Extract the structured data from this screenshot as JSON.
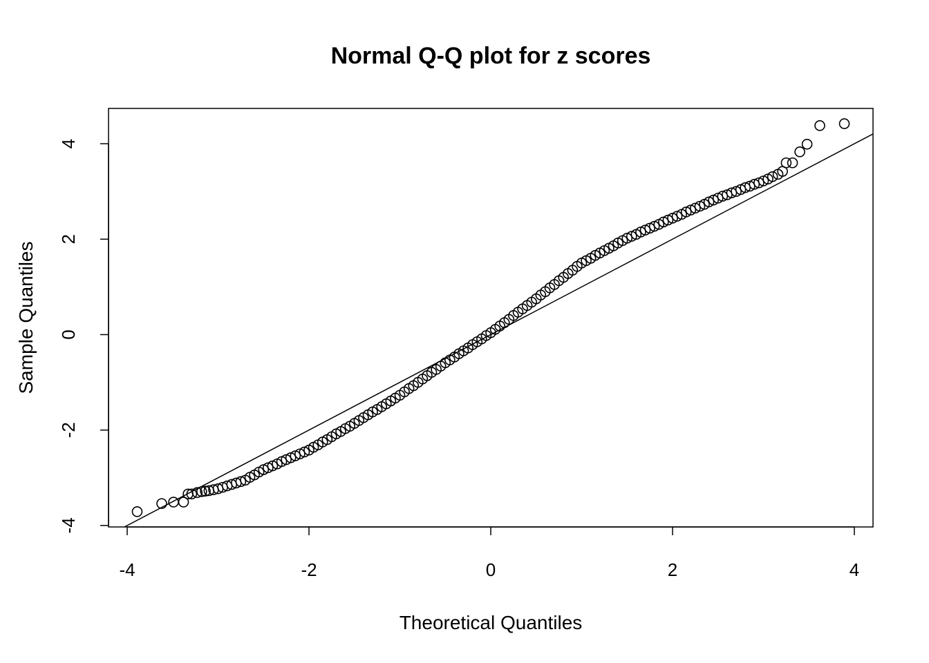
{
  "chart_data": {
    "type": "scatter",
    "title": "Normal Q-Q plot for z scores",
    "xlabel": "Theoretical Quantiles",
    "ylabel": "Sample Quantiles",
    "xlim": [
      -4.2,
      4.2
    ],
    "ylim": [
      -4.05,
      4.7
    ],
    "xticks": [
      -4,
      -2,
      0,
      2,
      4
    ],
    "yticks": [
      -4,
      -2,
      0,
      2,
      4
    ],
    "xtick_labels": [
      "-4",
      "-2",
      "0",
      "2",
      "4"
    ],
    "ytick_labels": [
      "-4",
      "-2",
      "0",
      "2",
      "4"
    ],
    "grid": false,
    "marker": "open-circle",
    "reference_line": {
      "intercept": 0,
      "slope": 1
    },
    "points": {
      "x": [
        -3.89,
        -3.62,
        -3.49,
        -3.38,
        -3.33,
        -3.29,
        -3.23,
        -3.18,
        -3.14,
        -3.1,
        -3.05,
        -3.0,
        -2.95,
        -2.9,
        -2.85,
        -2.8,
        -2.75,
        -2.7,
        -2.65,
        -2.6,
        -2.55,
        -2.5,
        -2.45,
        -2.4,
        -2.35,
        -2.3,
        -2.25,
        -2.2,
        -2.15,
        -2.1,
        -2.05,
        -2.0,
        -1.95,
        -1.9,
        -1.85,
        -1.8,
        -1.75,
        -1.7,
        -1.65,
        -1.6,
        -1.55,
        -1.5,
        -1.45,
        -1.4,
        -1.35,
        -1.3,
        -1.25,
        -1.2,
        -1.15,
        -1.1,
        -1.05,
        -1.0,
        -0.95,
        -0.9,
        -0.85,
        -0.8,
        -0.75,
        -0.7,
        -0.65,
        -0.6,
        -0.55,
        -0.5,
        -0.45,
        -0.4,
        -0.35,
        -0.3,
        -0.25,
        -0.2,
        -0.15,
        -0.1,
        -0.05,
        0.0,
        0.05,
        0.1,
        0.15,
        0.2,
        0.25,
        0.3,
        0.35,
        0.4,
        0.45,
        0.5,
        0.55,
        0.6,
        0.65,
        0.7,
        0.75,
        0.8,
        0.85,
        0.9,
        0.95,
        1.0,
        1.05,
        1.1,
        1.15,
        1.2,
        1.25,
        1.3,
        1.35,
        1.4,
        1.45,
        1.5,
        1.55,
        1.6,
        1.65,
        1.7,
        1.75,
        1.8,
        1.85,
        1.9,
        1.95,
        2.0,
        2.05,
        2.1,
        2.15,
        2.2,
        2.25,
        2.3,
        2.35,
        2.4,
        2.45,
        2.5,
        2.55,
        2.6,
        2.65,
        2.7,
        2.75,
        2.8,
        2.85,
        2.9,
        2.95,
        3.0,
        3.05,
        3.1,
        3.16,
        3.21,
        3.25,
        3.32,
        3.4,
        3.48,
        3.62,
        3.89
      ],
      "y": [
        -3.71,
        -3.54,
        -3.51,
        -3.51,
        -3.34,
        -3.34,
        -3.31,
        -3.29,
        -3.28,
        -3.27,
        -3.25,
        -3.23,
        -3.2,
        -3.17,
        -3.14,
        -3.11,
        -3.08,
        -3.05,
        -2.99,
        -2.94,
        -2.88,
        -2.83,
        -2.79,
        -2.75,
        -2.71,
        -2.66,
        -2.62,
        -2.58,
        -2.54,
        -2.5,
        -2.46,
        -2.42,
        -2.36,
        -2.31,
        -2.25,
        -2.2,
        -2.14,
        -2.08,
        -2.03,
        -1.97,
        -1.92,
        -1.86,
        -1.8,
        -1.74,
        -1.68,
        -1.62,
        -1.57,
        -1.51,
        -1.45,
        -1.39,
        -1.33,
        -1.27,
        -1.2,
        -1.13,
        -1.07,
        -1.0,
        -0.93,
        -0.86,
        -0.79,
        -0.73,
        -0.66,
        -0.59,
        -0.53,
        -0.47,
        -0.4,
        -0.34,
        -0.28,
        -0.21,
        -0.15,
        -0.09,
        -0.02,
        0.04,
        0.11,
        0.18,
        0.25,
        0.32,
        0.4,
        0.47,
        0.54,
        0.61,
        0.68,
        0.75,
        0.83,
        0.9,
        0.98,
        1.05,
        1.13,
        1.2,
        1.28,
        1.35,
        1.43,
        1.5,
        1.55,
        1.6,
        1.66,
        1.71,
        1.76,
        1.81,
        1.86,
        1.92,
        1.97,
        2.02,
        2.06,
        2.1,
        2.15,
        2.19,
        2.23,
        2.27,
        2.31,
        2.36,
        2.4,
        2.44,
        2.48,
        2.52,
        2.57,
        2.61,
        2.65,
        2.69,
        2.73,
        2.78,
        2.82,
        2.86,
        2.9,
        2.93,
        2.97,
        3.0,
        3.04,
        3.08,
        3.11,
        3.15,
        3.18,
        3.22,
        3.26,
        3.31,
        3.36,
        3.42,
        3.6,
        3.6,
        3.83,
        3.99,
        4.38,
        4.42
      ]
    }
  }
}
